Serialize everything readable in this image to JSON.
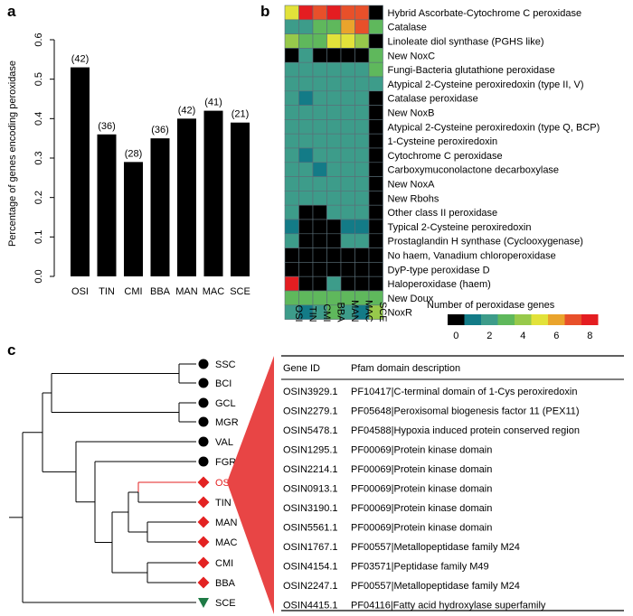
{
  "chart_data": [
    {
      "panel": "a",
      "type": "bar",
      "ylabel": "Percentage of genes encoding peroxidase",
      "xlabel": "",
      "ylim": [
        0,
        0.6
      ],
      "yticks": [
        0.0,
        0.1,
        0.2,
        0.3,
        0.4,
        0.5,
        0.6
      ],
      "ytick_labels": [
        "0.0",
        "0.1",
        "0.2",
        "0.3",
        "0.4",
        "0.5",
        "0.6"
      ],
      "categories": [
        "OSI",
        "TIN",
        "CMI",
        "BBA",
        "MAN",
        "MAC",
        "SCE"
      ],
      "values": [
        0.53,
        0.36,
        0.29,
        0.35,
        0.4,
        0.42,
        0.39
      ],
      "bar_labels": [
        "(42)",
        "(36)",
        "(28)",
        "(36)",
        "(42)",
        "(41)",
        "(21)"
      ],
      "bar_color": "#000000"
    },
    {
      "panel": "b",
      "type": "heatmap",
      "columns": [
        "OSI",
        "TIN",
        "CMI",
        "BBA",
        "MAN",
        "MAC",
        "SCE"
      ],
      "rows": [
        "Hybrid Ascorbate-Cytochrome C peroxidase",
        "Catalase",
        "Linoleate diol synthase (PGHS like)",
        "New NoxC",
        "Fungi-Bacteria glutathione peroxidase",
        "Atypical 2-Cysteine peroxiredoxin (type II, V)",
        "Catalase peroxidase",
        "New NoxB",
        "Atypical 2-Cysteine peroxiredoxin (type Q, BCP)",
        "1-Cysteine peroxiredoxin",
        "Cytochrome C peroxidase",
        "Carboxymuconolactone decarboxylase",
        "New NoxA",
        "New Rbohs",
        "Other class II peroxidase",
        "Typical 2-Cysteine peroxiredoxin",
        "Prostaglandin H synthase (Cyclooxygenase)",
        "No haem, Vanadium chloroperoxidase",
        "DyP-type peroxidase D",
        "Haloperoxidase (haem)",
        "New Doux",
        "NoxR"
      ],
      "values": [
        [
          5,
          8,
          7,
          8,
          7,
          7,
          0
        ],
        [
          2,
          2,
          3,
          3,
          6,
          7,
          3
        ],
        [
          4,
          3,
          3,
          5,
          5,
          4,
          0
        ],
        [
          0,
          2,
          0,
          0,
          0,
          0,
          3
        ],
        [
          2,
          2,
          2,
          2,
          2,
          2,
          3
        ],
        [
          2,
          2,
          2,
          2,
          2,
          2,
          2
        ],
        [
          2,
          1,
          2,
          2,
          2,
          2,
          0
        ],
        [
          2,
          2,
          2,
          2,
          2,
          2,
          0
        ],
        [
          2,
          2,
          2,
          2,
          2,
          2,
          0
        ],
        [
          2,
          2,
          2,
          2,
          2,
          2,
          0
        ],
        [
          2,
          1,
          2,
          2,
          2,
          2,
          0
        ],
        [
          2,
          2,
          1,
          2,
          2,
          2,
          0
        ],
        [
          2,
          2,
          2,
          2,
          2,
          2,
          0
        ],
        [
          2,
          2,
          2,
          2,
          2,
          2,
          0
        ],
        [
          2,
          0,
          0,
          2,
          2,
          2,
          0
        ],
        [
          1,
          0,
          0,
          0,
          1,
          1,
          0
        ],
        [
          2,
          0,
          0,
          0,
          2,
          2,
          0
        ],
        [
          0,
          0,
          0,
          0,
          0,
          0,
          0
        ],
        [
          0,
          0,
          0,
          0,
          0,
          0,
          0
        ],
        [
          8,
          0,
          0,
          2,
          0,
          0,
          0
        ],
        [
          3,
          3,
          3,
          3,
          3,
          3,
          3
        ],
        [
          2,
          1,
          2,
          3,
          2,
          1,
          4
        ]
      ],
      "colorbar": {
        "title": "Number of peroxidase genes",
        "range": [
          0,
          8
        ],
        "tick_labels": [
          "0",
          "2",
          "4",
          "6",
          "8"
        ],
        "colors": [
          "#000000",
          "#137b87",
          "#3d9c8a",
          "#5fb85c",
          "#97c94b",
          "#e2e23a",
          "#eaa42c",
          "#e8502a",
          "#e41d21"
        ]
      }
    },
    {
      "panel": "c",
      "type": "tree",
      "leaves": [
        "SSC",
        "BCI",
        "GCL",
        "MGR",
        "VAL",
        "FGR",
        "OSI",
        "TIN",
        "MAN",
        "MAC",
        "CMI",
        "BBA",
        "SCE"
      ],
      "leaf_markers": [
        "circle",
        "circle",
        "circle",
        "circle",
        "circle",
        "circle",
        "diamond",
        "diamond",
        "diamond",
        "diamond",
        "diamond",
        "diamond",
        "triangle"
      ],
      "marker_colors": [
        "#000000",
        "#000000",
        "#000000",
        "#000000",
        "#000000",
        "#000000",
        "#e32222",
        "#e32222",
        "#e32222",
        "#e32222",
        "#e32222",
        "#e32222",
        "#1e7a45"
      ],
      "highlight_leaf": "OSI",
      "highlight_color": "#e32222",
      "wedge_color": "#e84545"
    }
  ],
  "panel_labels": [
    "a",
    "b",
    "c"
  ],
  "gene_table": {
    "columns": [
      "Gene ID",
      "Pfam domain description"
    ],
    "rows": [
      [
        "OSIN3929.1",
        "PF10417|C-terminal domain of 1-Cys peroxiredoxin"
      ],
      [
        "OSIN2279.1",
        "PF05648|Peroxisomal biogenesis factor 11 (PEX11)"
      ],
      [
        "OSIN5478.1",
        "PF04588|Hypoxia induced protein conserved region"
      ],
      [
        "OSIN1295.1",
        "PF00069|Protein kinase domain"
      ],
      [
        "OSIN2214.1",
        "PF00069|Protein kinase domain"
      ],
      [
        "OSIN0913.1",
        "PF00069|Protein kinase domain"
      ],
      [
        "OSIN3190.1",
        "PF00069|Protein kinase domain"
      ],
      [
        "OSIN5561.1",
        "PF00069|Protein kinase domain"
      ],
      [
        "OSIN1767.1",
        "PF00557|Metallopeptidase family M24"
      ],
      [
        "OSIN4154.1",
        "PF03571|Peptidase family M49"
      ],
      [
        "OSIN2247.1",
        "PF00557|Metallopeptidase family M24"
      ],
      [
        "OSIN4415.1",
        "PF04116|Fatty acid hydroxylase superfamily"
      ]
    ]
  }
}
